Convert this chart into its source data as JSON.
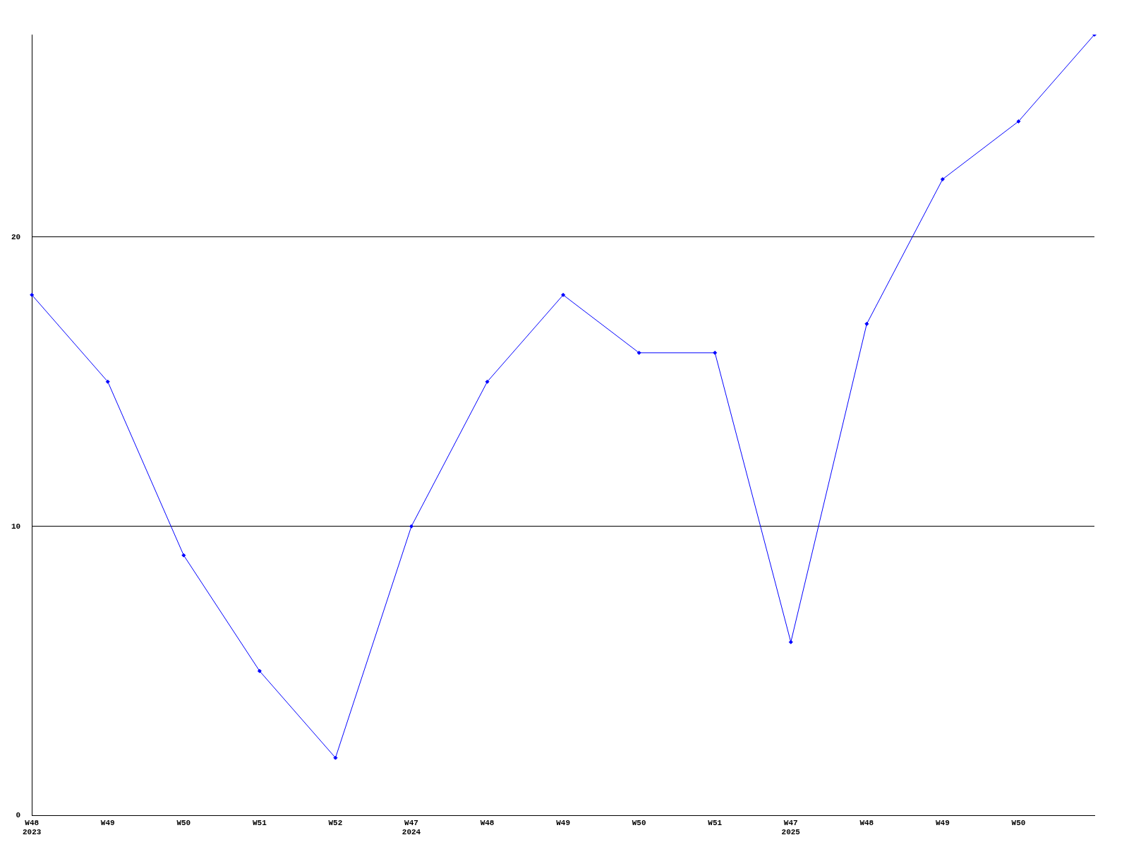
{
  "chart_data": {
    "type": "line",
    "categories": [
      "W48\n2023",
      "W49",
      "W50",
      "W51",
      "W52",
      "W47\n2024",
      "W48",
      "W49",
      "W50",
      "W51",
      "W47\n2025",
      "W48",
      "W49",
      "W50",
      null
    ],
    "series": [
      {
        "color": "#0000ff",
        "values": [
          18,
          15,
          9,
          5,
          2,
          10,
          15,
          18,
          16,
          16,
          6,
          17,
          22,
          24,
          27
        ]
      }
    ],
    "ylim": [
      0,
      27
    ],
    "yticks": [
      0,
      10,
      20
    ],
    "grid": "y",
    "legend": false,
    "marker": "diamond",
    "line_style": "solid"
  }
}
